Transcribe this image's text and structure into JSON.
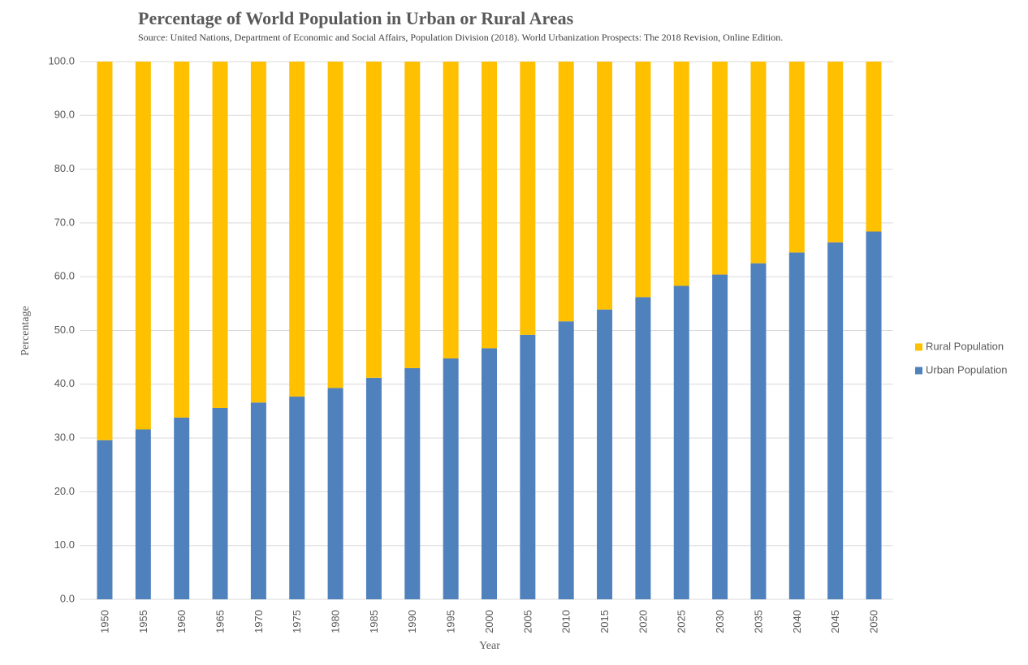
{
  "chart_data": {
    "type": "stacked-bar",
    "title": "Percentage of  World Population in Urban or Rural Areas",
    "subtitle": "Source: United Nations, Department of Economic and Social Affairs, Population Division (2018). World Urbanization Prospects: The 2018 Revision, Online Edition.",
    "x_label": "Year",
    "y_label": "Percentage",
    "categories": [
      "1950",
      "1955",
      "1960",
      "1965",
      "1970",
      "1975",
      "1980",
      "1985",
      "1990",
      "1995",
      "2000",
      "2005",
      "2010",
      "2015",
      "2020",
      "2025",
      "2030",
      "2035",
      "2040",
      "2045",
      "2050"
    ],
    "series": [
      {
        "name": "Urban Population",
        "color": "#4f81bd",
        "values": [
          29.6,
          31.6,
          33.8,
          35.6,
          36.6,
          37.7,
          39.3,
          41.2,
          43.0,
          44.8,
          46.7,
          49.2,
          51.7,
          53.9,
          56.2,
          58.3,
          60.4,
          62.5,
          64.5,
          66.4,
          68.4
        ]
      },
      {
        "name": "Rural Population",
        "color": "#ffc000",
        "values": [
          70.4,
          68.4,
          66.2,
          64.4,
          63.4,
          62.3,
          60.7,
          58.8,
          57.0,
          55.2,
          53.3,
          50.8,
          48.3,
          46.1,
          43.8,
          41.7,
          39.6,
          37.5,
          35.5,
          33.6,
          31.6
        ]
      }
    ],
    "ylim": [
      0,
      100
    ],
    "yticks": [
      {
        "value": 0,
        "label": "0.0"
      },
      {
        "value": 10,
        "label": "10.0"
      },
      {
        "value": 20,
        "label": "20.0"
      },
      {
        "value": 30,
        "label": "30.0"
      },
      {
        "value": 40,
        "label": "40.0"
      },
      {
        "value": 50,
        "label": "50.0"
      },
      {
        "value": 60,
        "label": "60.0"
      },
      {
        "value": 70,
        "label": "70.0"
      },
      {
        "value": 80,
        "label": "80.0"
      },
      {
        "value": 90,
        "label": "90.0"
      },
      {
        "value": 100,
        "label": "100.0"
      }
    ],
    "grid": true,
    "legend": "right"
  }
}
